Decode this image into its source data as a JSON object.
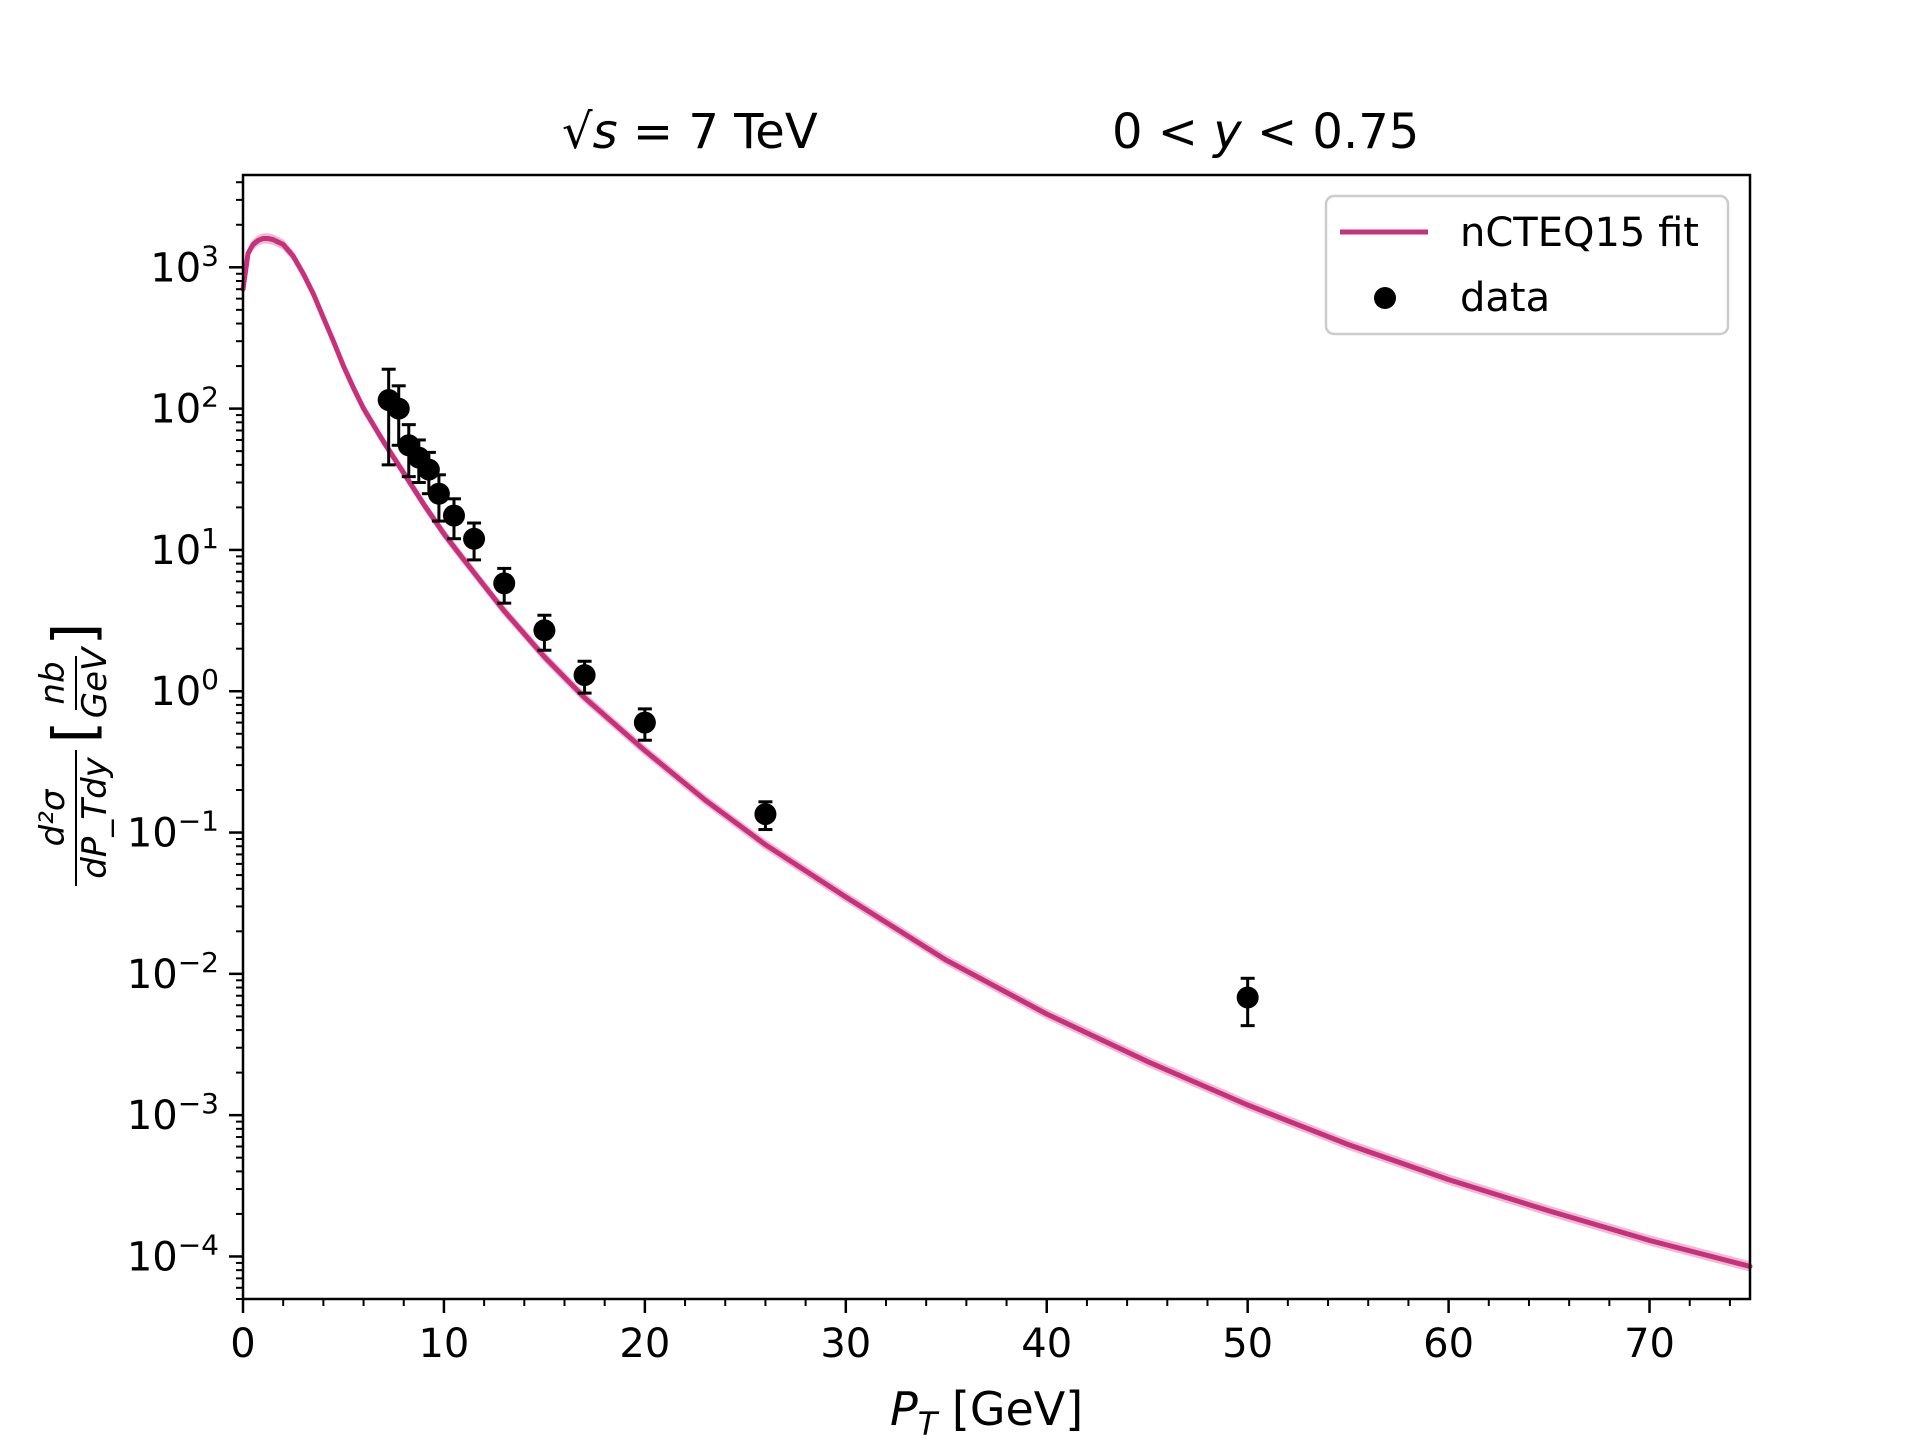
{
  "chart_data": {
    "type": "line",
    "title_left": {
      "prefix": "√",
      "var": "s",
      "suffix": " = 7 TeV"
    },
    "title_right": {
      "pre": "0 < ",
      "var": "y",
      "post": " < 0.75"
    },
    "xlabel": {
      "var": "P",
      "sub": "T",
      "unit": " [GeV]"
    },
    "ylabel": {
      "num": "d²σ",
      "den": "dP_Tdy",
      "unit_num": "nb",
      "unit_den": "GeV",
      "lbracket": "[",
      "rbracket": "]"
    },
    "xlim": [
      0,
      75
    ],
    "ylim": [
      5e-05,
      4500
    ],
    "yscale": "log",
    "grid": false,
    "xticks": [
      0,
      10,
      20,
      30,
      40,
      50,
      60,
      70
    ],
    "xtick_labels": [
      "0",
      "10",
      "20",
      "30",
      "40",
      "50",
      "60",
      "70"
    ],
    "yticks": [
      0.0001,
      0.001,
      0.01,
      0.1,
      1,
      10,
      100,
      1000
    ],
    "ytick_labels": [
      {
        "base": "10",
        "exp": "−4"
      },
      {
        "base": "10",
        "exp": "−3"
      },
      {
        "base": "10",
        "exp": "−2"
      },
      {
        "base": "10",
        "exp": "−1"
      },
      {
        "base": "10",
        "exp": "0"
      },
      {
        "base": "10",
        "exp": "1"
      },
      {
        "base": "10",
        "exp": "2"
      },
      {
        "base": "10",
        "exp": "3"
      }
    ],
    "legend": {
      "position": "top-right",
      "entries": [
        {
          "label": "nCTEQ15 fit",
          "kind": "line"
        },
        {
          "label": "data",
          "kind": "marker"
        }
      ]
    },
    "colors": {
      "fit": "#c9307c",
      "band": "#e7a6c6",
      "data": "#000000"
    },
    "series": [
      {
        "name": "nCTEQ15 fit",
        "type": "line",
        "x": [
          0.0,
          0.25,
          0.5,
          0.75,
          1.0,
          1.25,
          1.5,
          2.0,
          2.5,
          3.0,
          3.5,
          4.0,
          4.5,
          5.0,
          5.5,
          6.0,
          7.0,
          8.0,
          9.0,
          10.0,
          11.0,
          12.0,
          13.0,
          15.0,
          17.0,
          20.0,
          23.0,
          26.0,
          30.0,
          35.0,
          40.0,
          45.0,
          50.0,
          55.0,
          60.0,
          65.0,
          70.0,
          75.0
        ],
        "y": [
          700,
          1250,
          1450,
          1550,
          1600,
          1600,
          1570,
          1450,
          1200,
          900,
          650,
          440,
          300,
          200,
          140,
          100,
          58,
          35,
          21,
          13,
          8.5,
          5.6,
          3.7,
          1.75,
          0.9,
          0.38,
          0.17,
          0.082,
          0.035,
          0.0125,
          0.0052,
          0.0024,
          0.00118,
          0.00062,
          0.00035,
          0.00021,
          0.00013,
          8.5e-05
        ]
      },
      {
        "name": "data",
        "type": "scatter",
        "points": [
          {
            "x": 7.25,
            "y": 115,
            "err": 75
          },
          {
            "x": 7.75,
            "y": 100,
            "err": 45
          },
          {
            "x": 8.25,
            "y": 55,
            "err": 22
          },
          {
            "x": 8.75,
            "y": 45,
            "err": 15
          },
          {
            "x": 9.25,
            "y": 37,
            "err": 12
          },
          {
            "x": 9.75,
            "y": 25,
            "err": 9
          },
          {
            "x": 10.5,
            "y": 17.5,
            "err": 5.5
          },
          {
            "x": 11.5,
            "y": 12,
            "err": 3.5
          },
          {
            "x": 13.0,
            "y": 5.8,
            "err": 1.6
          },
          {
            "x": 15.0,
            "y": 2.7,
            "err": 0.75
          },
          {
            "x": 17.0,
            "y": 1.3,
            "err": 0.33
          },
          {
            "x": 20.0,
            "y": 0.6,
            "err": 0.15
          },
          {
            "x": 26.0,
            "y": 0.135,
            "err": 0.03
          },
          {
            "x": 50.0,
            "y": 0.0068,
            "err": 0.0025
          }
        ]
      }
    ]
  }
}
